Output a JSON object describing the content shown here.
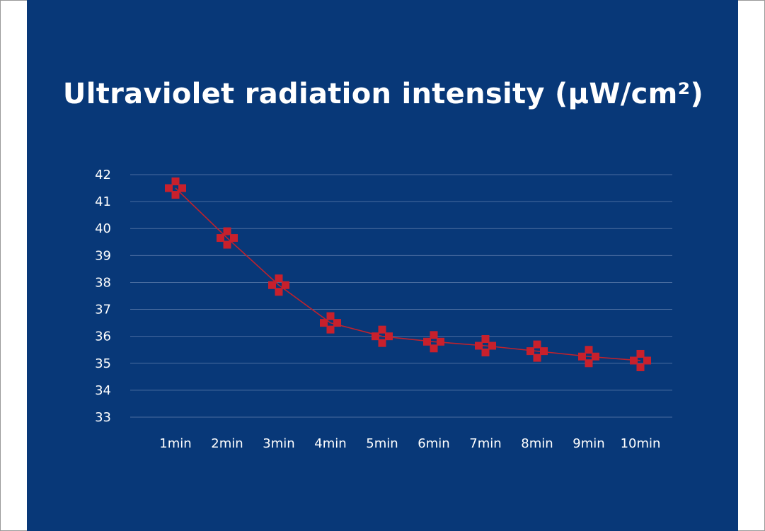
{
  "chart_data": {
    "type": "line",
    "title": "Ultraviolet radiation intensity (μW/cm²)",
    "xlabel": "",
    "ylabel": "",
    "categories": [
      "1min",
      "2min",
      "3min",
      "4min",
      "5min",
      "6min",
      "7min",
      "8min",
      "9min",
      "10min"
    ],
    "series": [
      {
        "name": "Ultraviolet radiation intensity",
        "values": [
          41.5,
          39.65,
          37.9,
          36.5,
          36.0,
          35.8,
          35.65,
          35.45,
          35.25,
          35.1
        ]
      }
    ],
    "ylim": [
      33,
      42
    ],
    "yticks": [
      "33",
      "34",
      "35",
      "36",
      "37",
      "38",
      "39",
      "40",
      "41",
      "42"
    ],
    "grid": true,
    "legend": "none"
  },
  "colors": {
    "background": "#083878",
    "line": "#c0222c",
    "marker": "#c8202c",
    "text": "#ffffff",
    "grid": "#4a6da0"
  }
}
